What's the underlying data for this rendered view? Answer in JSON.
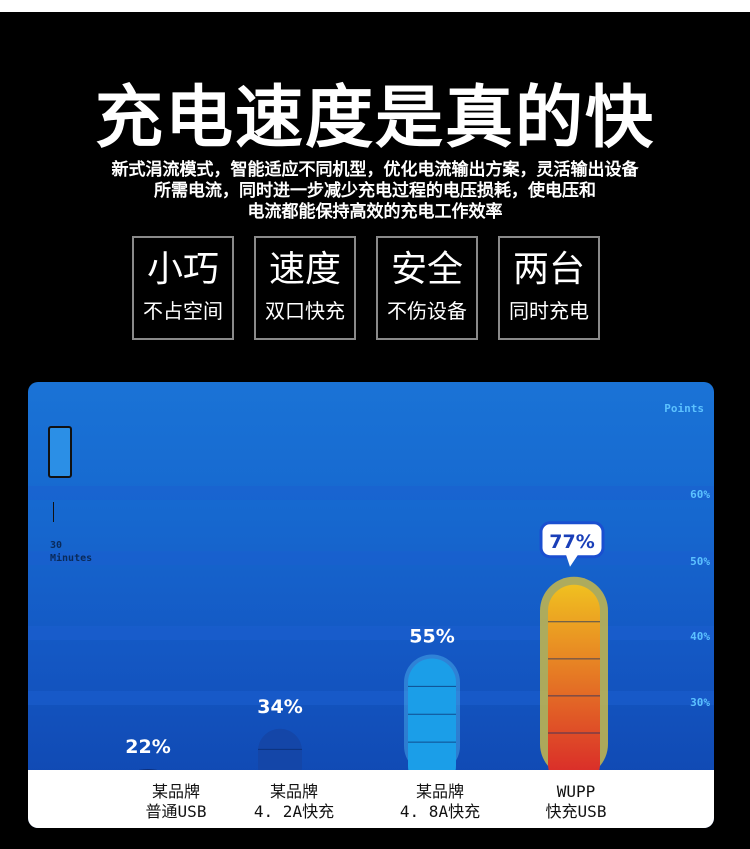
{
  "header": {
    "title": "充电速度是真的快",
    "description_lines": [
      "新式涓流模式，智能适应不同机型，优化电流输出方案，灵活输出设备",
      "所需电流，同时进一步减少充电过程的电压损耗，使电压和",
      "电流都能保持高效的充电工作效率"
    ]
  },
  "features": [
    {
      "title": "小巧",
      "subtitle": "不占空间"
    },
    {
      "title": "速度",
      "subtitle": "双口快充"
    },
    {
      "title": "安全",
      "subtitle": "不伤设备"
    },
    {
      "title": "两台",
      "subtitle": "同时充电"
    }
  ],
  "chart_data": {
    "type": "bar",
    "ylabel": "Points",
    "time_label": [
      "30",
      "Minutes"
    ],
    "y_ticks": [
      "30%",
      "40%",
      "50%",
      "60%"
    ],
    "y_tick_values": [
      30,
      40,
      50,
      60
    ],
    "categories": [
      [
        "某品牌",
        "普通USB"
      ],
      [
        "某品牌",
        "4. 2A快充"
      ],
      [
        "某品牌",
        "4. 8A快充"
      ],
      [
        "WUPP",
        "快充USB"
      ]
    ],
    "values": [
      22,
      34,
      55,
      77
    ],
    "value_labels": [
      "22%",
      "34%",
      "55%",
      "77%"
    ],
    "highlight_index": 3,
    "colors": {
      "panel": "#1668cf",
      "bar1": "#0d2f7a",
      "bar2": "#1446a8",
      "bar3": "#1b9ee8",
      "bar4_top": "#f0c020",
      "bar4_bottom": "#d8202a",
      "tick_text": "#5cc2ff"
    }
  }
}
